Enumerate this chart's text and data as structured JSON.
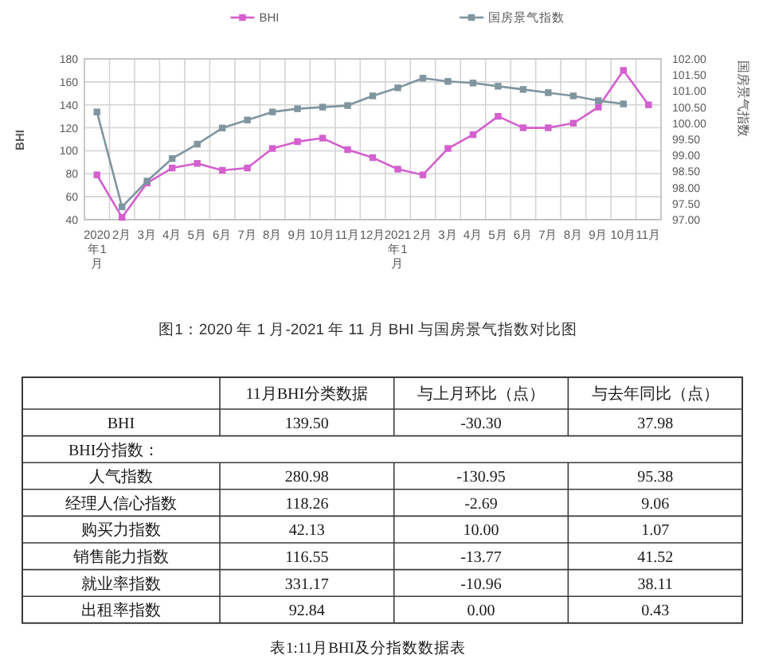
{
  "chart_data": [
    {
      "type": "line",
      "title": "图1：2020 年 1 月-2021 年 11 月 BHI 与国房景气指数对比图",
      "ylabel": "BHI",
      "y2label": "国房景气指数",
      "categories": [
        "2020年1月",
        "2月",
        "3月",
        "4月",
        "5月",
        "6月",
        "7月",
        "8月",
        "9月",
        "10月",
        "11月",
        "12月",
        "2021年1月",
        "2月",
        "3月",
        "4月",
        "5月",
        "6月",
        "7月",
        "8月",
        "9月",
        "10月",
        "11月"
      ],
      "series": [
        {
          "name": "BHI",
          "color": "#d45fcf",
          "values": [
            79,
            42,
            72,
            85,
            89,
            83,
            85,
            102,
            108,
            111,
            101,
            94,
            84,
            79,
            102,
            114,
            130,
            120,
            120,
            124,
            138,
            170,
            140
          ]
        },
        {
          "name": "国房景气指数",
          "color": "#7f959f",
          "axis": "y2",
          "values": [
            100.35,
            97.4,
            98.2,
            98.9,
            99.35,
            99.85,
            100.1,
            100.35,
            100.45,
            100.5,
            100.55,
            100.85,
            101.1,
            101.4,
            101.3,
            101.25,
            101.15,
            101.05,
            100.95,
            100.85,
            100.7,
            100.6,
            null
          ]
        }
      ],
      "ylim": [
        40,
        180
      ],
      "yticks": [
        40,
        60,
        80,
        100,
        120,
        140,
        160,
        180
      ],
      "y2lim": [
        97,
        102
      ],
      "y2ticks": [
        {
          "value": 97,
          "label": "97.00"
        },
        {
          "value": 97.5,
          "label": "97.50"
        },
        {
          "value": 98,
          "label": "98.00"
        },
        {
          "value": 98.5,
          "label": "98.50"
        },
        {
          "value": 99,
          "label": "99.00"
        },
        {
          "value": 99.5,
          "label": "99.50"
        },
        {
          "value": 100,
          "label": "100.00"
        },
        {
          "value": 100.5,
          "label": "100.50"
        },
        {
          "value": 101,
          "label": "101.00"
        },
        {
          "value": 101.5,
          "label": "101.50"
        },
        {
          "value": 102,
          "label": "102.00"
        }
      ],
      "grid": true,
      "legend": "top",
      "marker": "square",
      "line_style": "solid"
    },
    {
      "type": "other",
      "title": "表1:11月BHI及分指数数据表",
      "annotations": [
        "BHI分指数："
      ],
      "categories": [
        "BHI",
        null,
        "人气指数",
        "经理人信心指数",
        "购买力指数",
        "销售能力指数",
        "就业率指数",
        "出租率指数"
      ],
      "series": [
        {
          "name": "11月BHI分类数据",
          "values": [
            139.5,
            null,
            280.98,
            118.26,
            42.13,
            116.55,
            331.17,
            92.84
          ],
          "value_labels": [
            "139.50",
            null,
            "280.98",
            "118.26",
            "42.13",
            "116.55",
            "331.17",
            "92.84"
          ]
        },
        {
          "name": "与上月环比（点）",
          "values": [
            -30.3,
            null,
            -130.95,
            -2.69,
            10,
            -13.77,
            -10.96,
            0
          ],
          "value_labels": [
            "-30.30",
            null,
            "-130.95",
            "-2.69",
            "10.00",
            "-13.77",
            "-10.96",
            "0.00"
          ]
        },
        {
          "name": "与去年同比（点）",
          "values": [
            37.98,
            null,
            95.38,
            9.06,
            1.07,
            41.52,
            38.11,
            0.43
          ],
          "value_labels": [
            "37.98",
            null,
            "95.38",
            "9.06",
            "1.07",
            "41.52",
            "38.11",
            "0.43"
          ]
        }
      ]
    }
  ]
}
